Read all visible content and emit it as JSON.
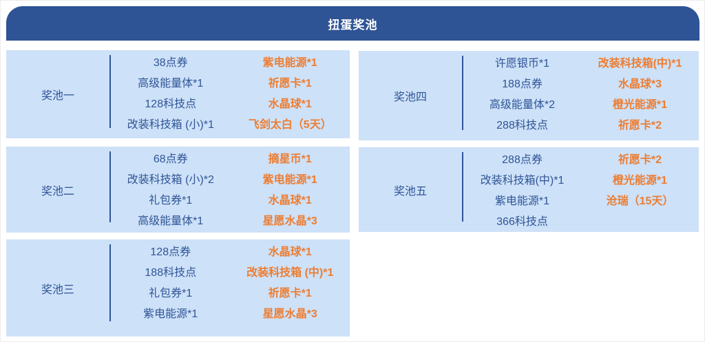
{
  "header": {
    "title": "扭蛋奖池"
  },
  "colors": {
    "banner_bg": "#2F5496",
    "card_bg": "#CDE1F8",
    "item_text": "#2F5496",
    "reward_text": "#ED7D31",
    "banner_text": "#FFFFFF"
  },
  "pools": [
    {
      "label": "奖池一",
      "items": [
        "38点券",
        "高级能量体*1",
        "128科技点",
        "改装科技箱 (小)*1"
      ],
      "rewards": [
        "紫电能源*1",
        "祈愿卡*1",
        "水晶球*1",
        "飞剑太白（5天）"
      ]
    },
    {
      "label": "奖池二",
      "items": [
        "68点券",
        "改装科技箱 (小)*2",
        "礼包券*1",
        "高级能量体*1"
      ],
      "rewards": [
        "摘星币*1",
        "紫电能源*1",
        "水晶球*1",
        "星愿水晶*3"
      ]
    },
    {
      "label": "奖池三",
      "items": [
        "128点券",
        "188科技点",
        "礼包券*1",
        "紫电能源*1"
      ],
      "rewards": [
        "水晶球*1",
        "改装科技箱 (中)*1",
        "祈愿卡*1",
        "星愿水晶*3"
      ]
    },
    {
      "label": "奖池四",
      "items": [
        "许愿银币*1",
        "188点券",
        "高级能量体*2",
        "288科技点"
      ],
      "rewards": [
        "改装科技箱(中)*1",
        "水晶球*3",
        "橙光能源*1",
        "祈愿卡*2"
      ]
    },
    {
      "label": "奖池五",
      "items": [
        "288点券",
        "改装科技箱(中)*1",
        "紫电能源*1",
        "366科技点"
      ],
      "rewards": [
        "祈愿卡*2",
        "橙光能源*1",
        "沧瑞（15天）",
        ""
      ]
    }
  ]
}
